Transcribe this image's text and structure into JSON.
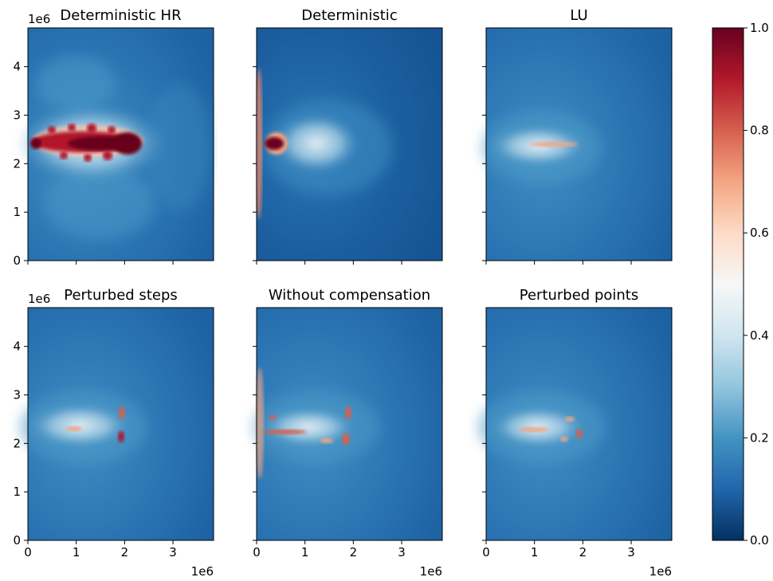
{
  "chart_data": {
    "type": "heatmap",
    "x_tick_labels": [
      "0",
      "1",
      "2",
      "3"
    ],
    "y_tick_labels": [
      "0",
      "1",
      "2",
      "3",
      "4"
    ],
    "x_offset_label": "1e6",
    "y_offset_label": "1e6",
    "xlim": [
      0,
      3840000
    ],
    "ylim": [
      0,
      4800000
    ],
    "colorbar": {
      "range": [
        0.0,
        1.0
      ],
      "tick_labels": [
        "0.0",
        "0.2",
        "0.4",
        "0.6",
        "0.8",
        "1.0"
      ],
      "colormap": "RdBu_r"
    },
    "panels": [
      {
        "title": "Deterministic HR",
        "x_extent": [
          0,
          2300000
        ],
        "peak_intensity": 1.0
      },
      {
        "title": "Deterministic",
        "x_extent": [
          0,
          1800000
        ],
        "peak_intensity": 1.0
      },
      {
        "title": "LU",
        "x_extent": [
          0,
          2100000
        ],
        "peak_intensity": 0.7
      },
      {
        "title": "Perturbed steps",
        "x_extent": [
          0,
          2100000
        ],
        "peak_intensity": 0.85
      },
      {
        "title": "Without compensation",
        "x_extent": [
          0,
          2000000
        ],
        "peak_intensity": 0.9
      },
      {
        "title": "Perturbed points",
        "x_extent": [
          0,
          2000000
        ],
        "peak_intensity": 0.85
      }
    ]
  }
}
